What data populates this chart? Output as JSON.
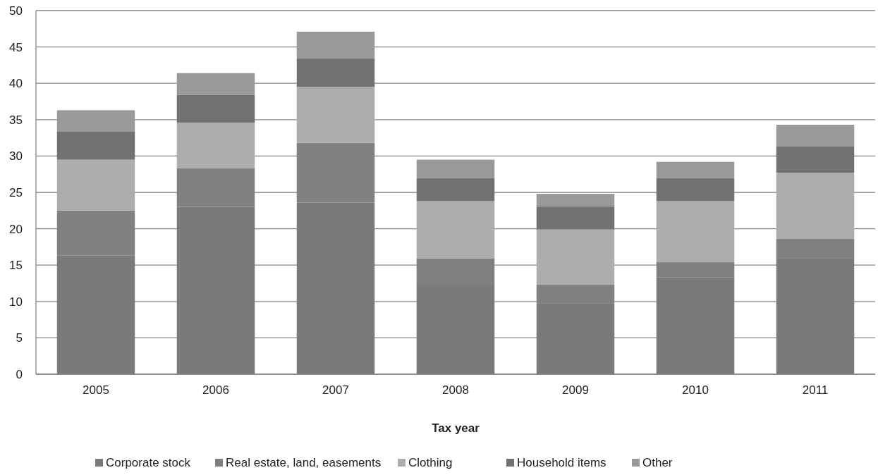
{
  "chart_data": {
    "type": "bar",
    "stacked": true,
    "xlabel": "Tax year",
    "categories": [
      "2005",
      "2006",
      "2007",
      "2008",
      "2009",
      "2010",
      "2011"
    ],
    "series": [
      {
        "name": "Corporate stock",
        "color": "#7a7a7a",
        "values": [
          16.3,
          23.0,
          23.6,
          12.3,
          9.7,
          13.3,
          15.9
        ]
      },
      {
        "name": "Real estate, land, easements",
        "color": "#808080",
        "values": [
          6.2,
          5.3,
          8.2,
          3.6,
          2.6,
          2.1,
          2.7
        ]
      },
      {
        "name": "Clothing",
        "color": "#adadad",
        "values": [
          7.0,
          6.3,
          7.7,
          7.9,
          7.6,
          8.4,
          9.1
        ]
      },
      {
        "name": "Household items",
        "color": "#717171",
        "values": [
          3.9,
          3.8,
          3.9,
          3.2,
          3.2,
          3.2,
          3.6
        ]
      },
      {
        "name": "Other",
        "color": "#999999",
        "values": [
          2.9,
          3.0,
          3.7,
          2.5,
          1.7,
          2.2,
          3.0
        ]
      }
    ],
    "ylim": [
      0,
      50
    ],
    "yticks": [
      0,
      5,
      10,
      15,
      20,
      25,
      30,
      35,
      40,
      45,
      50
    ],
    "grid": "y",
    "legend": "bottom"
  }
}
